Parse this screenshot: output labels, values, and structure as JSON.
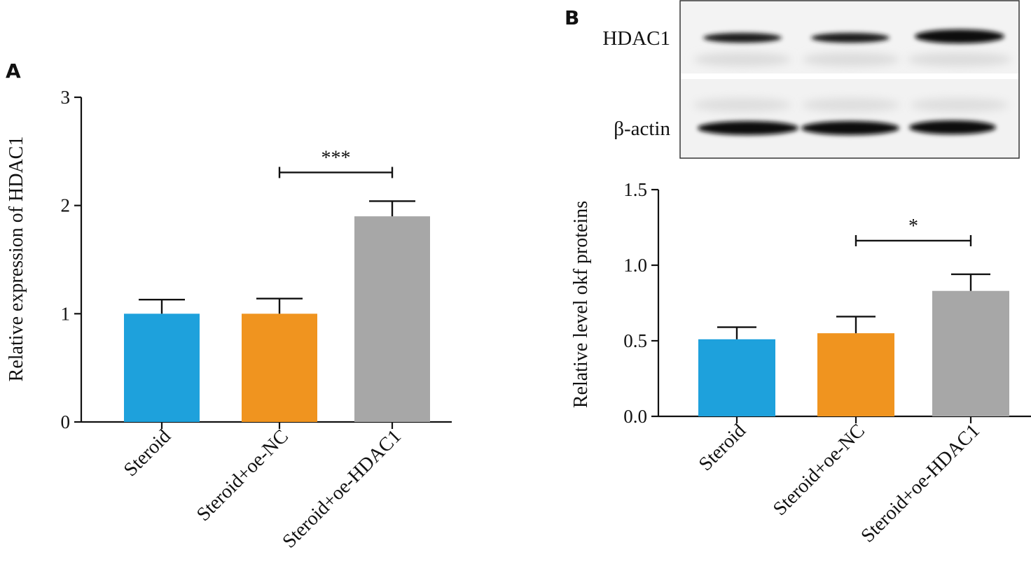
{
  "colors": {
    "steroid": "#1ea1dc",
    "oe_nc": "#f0941f",
    "oe_hdac1": "#a7a7a7",
    "axis": "#111111"
  },
  "chart_data": [
    {
      "panel": "A",
      "type": "bar",
      "ylabel": "Relative expression of HDAC1",
      "categories": [
        "Steroid",
        "Steroid+oe-NC",
        "Steroid+oe-HDAC1"
      ],
      "values": [
        1.0,
        1.0,
        1.9
      ],
      "errors": [
        0.13,
        0.14,
        0.14
      ],
      "ylim": [
        0,
        3
      ],
      "yticks": [
        "0",
        "1",
        "2",
        "3"
      ],
      "significance": [
        {
          "from": 1,
          "to": 2,
          "label": "***"
        }
      ]
    },
    {
      "panel": "B",
      "type": "bar",
      "ylabel": "Relative level okf proteins",
      "categories": [
        "Steroid",
        "Steroid+oe-NC",
        "Steroid+oe-HDAC1"
      ],
      "values": [
        0.51,
        0.55,
        0.83
      ],
      "errors": [
        0.08,
        0.11,
        0.11
      ],
      "ylim": [
        0,
        1.5
      ],
      "yticks": [
        "0.0",
        "0.5",
        "1.0",
        "1.5"
      ],
      "significance": [
        {
          "from": 1,
          "to": 2,
          "label": "*"
        }
      ]
    }
  ],
  "western_blot": {
    "rows": [
      "HDAC1",
      "β-actin"
    ]
  }
}
